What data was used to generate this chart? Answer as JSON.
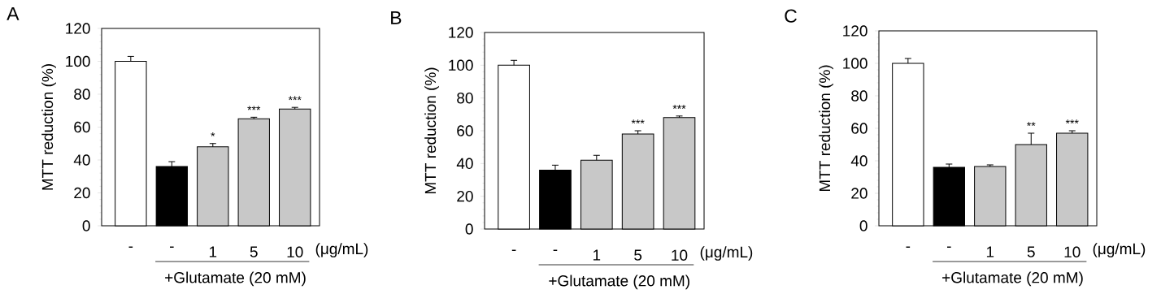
{
  "chart_data": [
    {
      "type": "bar",
      "title": "A",
      "ylabel": "MTT reduction (%)",
      "xlabel": "+Glutamate (20 mM)",
      "categories": [
        "-",
        "-",
        "1",
        "5",
        "10"
      ],
      "values": [
        100,
        36,
        48,
        65,
        71
      ],
      "errors": [
        3,
        3,
        2,
        1,
        1
      ],
      "colors": [
        "#ffffff",
        "#000000",
        "#c8c8c8",
        "#c8c8c8",
        "#c8c8c8"
      ],
      "ylim": [
        0,
        120
      ],
      "yticks": [
        0,
        20,
        40,
        60,
        80,
        100,
        120
      ],
      "annotations": [
        "(μg/mL)",
        {
          "text": "*",
          "x": "1",
          "y": 48
        },
        {
          "text": "***",
          "x": "5",
          "y": 65
        },
        {
          "text": "***",
          "x": "10",
          "y": 71
        }
      ]
    },
    {
      "type": "bar",
      "title": "B",
      "ylabel": "MTT reduction (%)",
      "xlabel": "+Glutamate (20 mM)",
      "categories": [
        "-",
        "-",
        "1",
        "5",
        "10"
      ],
      "values": [
        100,
        36,
        42,
        58,
        68
      ],
      "errors": [
        3,
        3,
        3,
        2,
        1
      ],
      "colors": [
        "#ffffff",
        "#000000",
        "#c8c8c8",
        "#c8c8c8",
        "#c8c8c8"
      ],
      "ylim": [
        0,
        120
      ],
      "yticks": [
        0,
        20,
        40,
        60,
        80,
        100,
        120
      ],
      "annotations": [
        "(μg/mL)",
        {
          "text": "***",
          "x": "5",
          "y": 58
        },
        {
          "text": "***",
          "x": "10",
          "y": 68
        }
      ]
    },
    {
      "type": "bar",
      "title": "C",
      "ylabel": "MTT reduction (%)",
      "xlabel": "+Glutamate (20 mM)",
      "categories": [
        "-",
        "-",
        "1",
        "5",
        "10"
      ],
      "values": [
        100,
        36,
        36.5,
        50,
        57
      ],
      "errors": [
        3,
        2,
        1,
        7,
        1.5
      ],
      "colors": [
        "#ffffff",
        "#000000",
        "#c8c8c8",
        "#c8c8c8",
        "#c8c8c8"
      ],
      "ylim": [
        0,
        120
      ],
      "yticks": [
        0,
        20,
        40,
        60,
        80,
        100,
        120
      ],
      "annotations": [
        "(μg/mL)",
        {
          "text": "**",
          "x": "5",
          "y": 50
        },
        {
          "text": "***",
          "x": "10",
          "y": 57
        }
      ]
    }
  ]
}
